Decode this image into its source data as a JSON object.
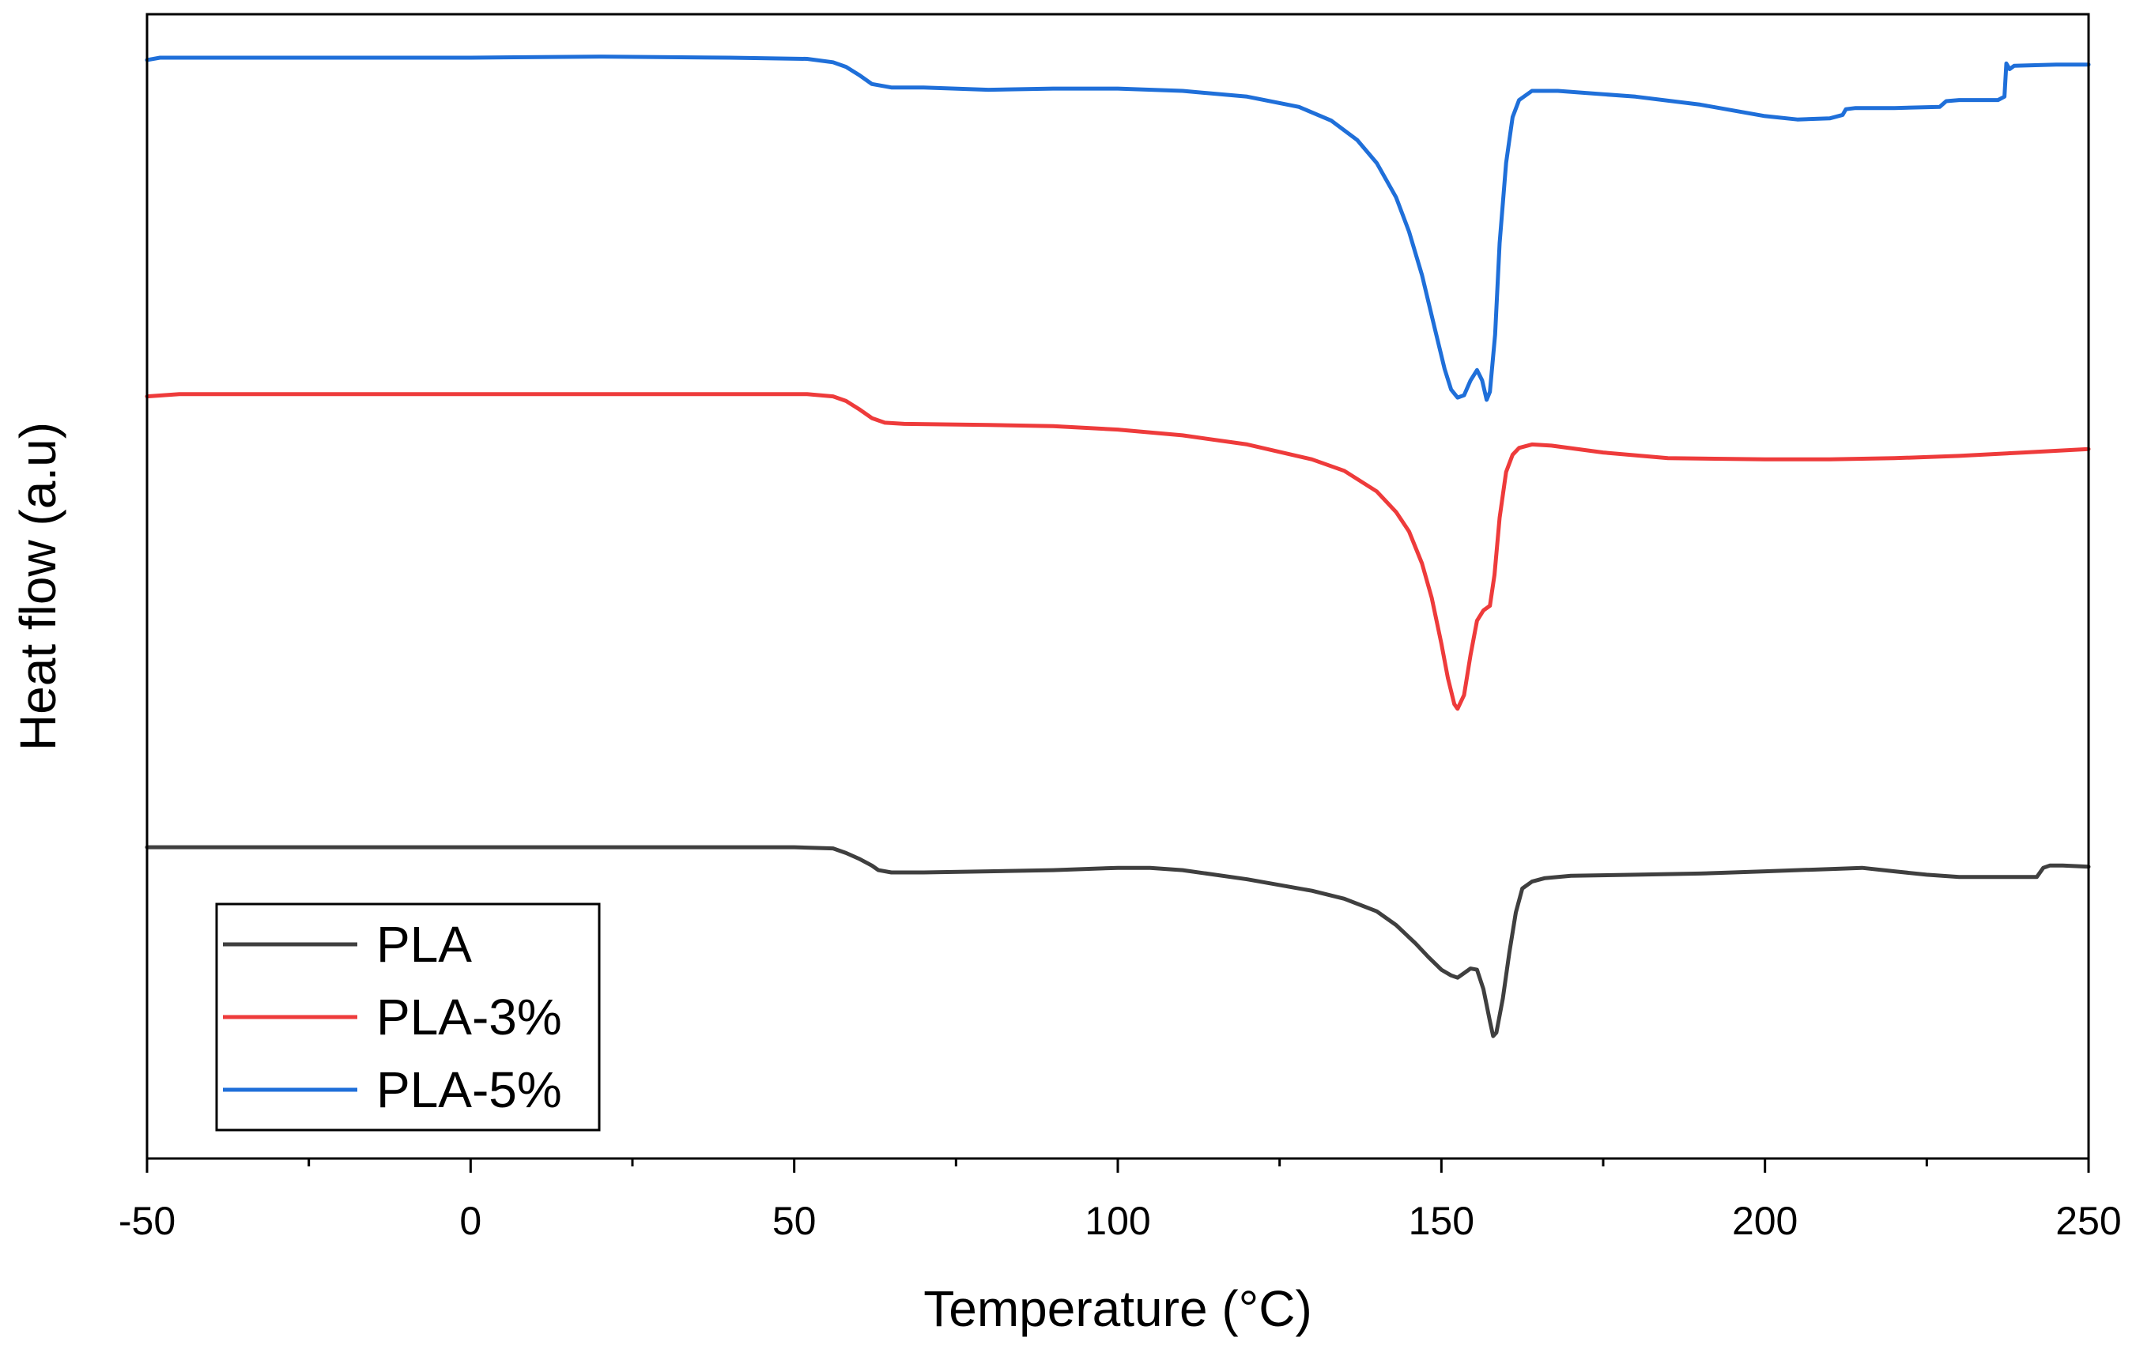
{
  "chart_data": {
    "type": "line",
    "title": "",
    "xlabel": "Temperature (°C)",
    "ylabel": "Heat flow (a.u)",
    "xlim": [
      -50,
      250
    ],
    "ylim": [
      0,
      1
    ],
    "xticks": [
      -50,
      0,
      50,
      100,
      150,
      200,
      250
    ],
    "xtick_labels": [
      "-50",
      "0",
      "50",
      "100",
      "150",
      "200",
      "250"
    ],
    "minor_xticks": [
      -25,
      25,
      75,
      125,
      175,
      225
    ],
    "yticks_shown": false,
    "grid": false,
    "legend_position": "bottom-left",
    "series": [
      {
        "name": "PLA",
        "color": "#3f3f3f",
        "points": [
          [
            -50,
            0.272
          ],
          [
            0,
            0.272
          ],
          [
            50,
            0.272
          ],
          [
            56,
            0.271
          ],
          [
            58,
            0.267
          ],
          [
            60,
            0.262
          ],
          [
            62,
            0.256
          ],
          [
            63,
            0.252
          ],
          [
            65,
            0.25
          ],
          [
            70,
            0.25
          ],
          [
            80,
            0.251
          ],
          [
            90,
            0.252
          ],
          [
            100,
            0.254
          ],
          [
            105,
            0.254
          ],
          [
            110,
            0.252
          ],
          [
            120,
            0.244
          ],
          [
            130,
            0.234
          ],
          [
            135,
            0.227
          ],
          [
            140,
            0.216
          ],
          [
            143,
            0.204
          ],
          [
            146,
            0.188
          ],
          [
            148,
            0.176
          ],
          [
            150,
            0.165
          ],
          [
            151.5,
            0.16
          ],
          [
            152.5,
            0.158
          ],
          [
            153.5,
            0.162
          ],
          [
            154.5,
            0.166
          ],
          [
            155.5,
            0.165
          ],
          [
            156.5,
            0.148
          ],
          [
            157.5,
            0.12
          ],
          [
            158,
            0.107
          ],
          [
            158.5,
            0.11
          ],
          [
            159.5,
            0.14
          ],
          [
            160.5,
            0.18
          ],
          [
            161.5,
            0.215
          ],
          [
            162.5,
            0.236
          ],
          [
            164,
            0.242
          ],
          [
            166,
            0.245
          ],
          [
            170,
            0.247
          ],
          [
            180,
            0.248
          ],
          [
            190,
            0.249
          ],
          [
            200,
            0.251
          ],
          [
            210,
            0.253
          ],
          [
            215,
            0.254
          ],
          [
            220,
            0.251
          ],
          [
            225,
            0.248
          ],
          [
            230,
            0.246
          ],
          [
            235,
            0.246
          ],
          [
            242,
            0.246
          ],
          [
            243,
            0.254
          ],
          [
            244,
            0.256
          ],
          [
            246,
            0.256
          ],
          [
            250,
            0.255
          ]
        ]
      },
      {
        "name": "PLA-3%",
        "color": "#ee3b3b",
        "points": [
          [
            -50,
            0.666
          ],
          [
            -45,
            0.668
          ],
          [
            0,
            0.668
          ],
          [
            40,
            0.668
          ],
          [
            52,
            0.668
          ],
          [
            56,
            0.666
          ],
          [
            58,
            0.662
          ],
          [
            60,
            0.655
          ],
          [
            62,
            0.647
          ],
          [
            64,
            0.643
          ],
          [
            67,
            0.642
          ],
          [
            80,
            0.641
          ],
          [
            90,
            0.64
          ],
          [
            100,
            0.637
          ],
          [
            110,
            0.632
          ],
          [
            120,
            0.624
          ],
          [
            130,
            0.611
          ],
          [
            135,
            0.601
          ],
          [
            140,
            0.583
          ],
          [
            143,
            0.565
          ],
          [
            145,
            0.548
          ],
          [
            147,
            0.52
          ],
          [
            148.5,
            0.49
          ],
          [
            150,
            0.45
          ],
          [
            151,
            0.42
          ],
          [
            152,
            0.397
          ],
          [
            152.5,
            0.393
          ],
          [
            153.5,
            0.405
          ],
          [
            154.5,
            0.44
          ],
          [
            155.5,
            0.47
          ],
          [
            156.5,
            0.479
          ],
          [
            157.5,
            0.483
          ],
          [
            158.2,
            0.51
          ],
          [
            159,
            0.56
          ],
          [
            160,
            0.6
          ],
          [
            161,
            0.615
          ],
          [
            162,
            0.621
          ],
          [
            164,
            0.624
          ],
          [
            167,
            0.623
          ],
          [
            175,
            0.617
          ],
          [
            185,
            0.612
          ],
          [
            200,
            0.611
          ],
          [
            210,
            0.611
          ],
          [
            220,
            0.612
          ],
          [
            230,
            0.614
          ],
          [
            240,
            0.617
          ],
          [
            250,
            0.62
          ]
        ]
      },
      {
        "name": "PLA-5%",
        "color": "#1f6fd9",
        "points": [
          [
            -50,
            0.96
          ],
          [
            -48,
            0.962
          ],
          [
            -40,
            0.962
          ],
          [
            0,
            0.962
          ],
          [
            20,
            0.963
          ],
          [
            40,
            0.962
          ],
          [
            52,
            0.961
          ],
          [
            56,
            0.958
          ],
          [
            58,
            0.954
          ],
          [
            60,
            0.947
          ],
          [
            62,
            0.939
          ],
          [
            65,
            0.936
          ],
          [
            70,
            0.936
          ],
          [
            80,
            0.934
          ],
          [
            90,
            0.935
          ],
          [
            100,
            0.935
          ],
          [
            110,
            0.933
          ],
          [
            120,
            0.928
          ],
          [
            128,
            0.919
          ],
          [
            133,
            0.907
          ],
          [
            137,
            0.89
          ],
          [
            140,
            0.87
          ],
          [
            143,
            0.84
          ],
          [
            145,
            0.81
          ],
          [
            147,
            0.772
          ],
          [
            149,
            0.725
          ],
          [
            150.5,
            0.69
          ],
          [
            151.5,
            0.672
          ],
          [
            152.5,
            0.665
          ],
          [
            153.5,
            0.667
          ],
          [
            154.5,
            0.68
          ],
          [
            155.5,
            0.689
          ],
          [
            156.3,
            0.68
          ],
          [
            157,
            0.663
          ],
          [
            157.5,
            0.67
          ],
          [
            158.3,
            0.72
          ],
          [
            159,
            0.8
          ],
          [
            160,
            0.87
          ],
          [
            161,
            0.91
          ],
          [
            162,
            0.925
          ],
          [
            164,
            0.933
          ],
          [
            168,
            0.933
          ],
          [
            180,
            0.928
          ],
          [
            190,
            0.921
          ],
          [
            200,
            0.911
          ],
          [
            205,
            0.908
          ],
          [
            210,
            0.909
          ],
          [
            212,
            0.912
          ],
          [
            212.5,
            0.917
          ],
          [
            214,
            0.918
          ],
          [
            220,
            0.918
          ],
          [
            227,
            0.919
          ],
          [
            228,
            0.924
          ],
          [
            230,
            0.925
          ],
          [
            236,
            0.925
          ],
          [
            237,
            0.928
          ],
          [
            237.3,
            0.957
          ],
          [
            237.8,
            0.952
          ],
          [
            238.5,
            0.955
          ],
          [
            245,
            0.956
          ],
          [
            250,
            0.956
          ]
        ]
      }
    ]
  }
}
